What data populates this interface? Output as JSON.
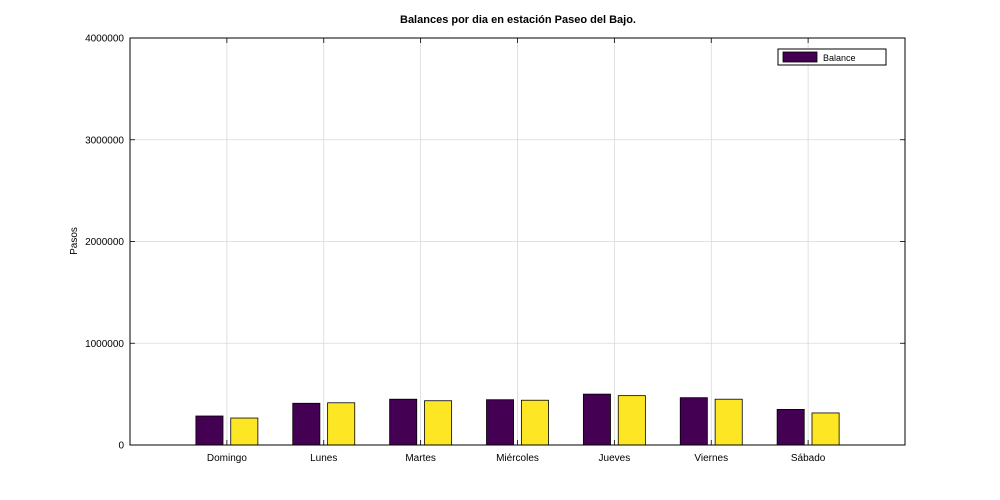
{
  "chart_data": {
    "type": "bar",
    "title": "Balances por dia en estación Paseo del Bajo.",
    "xlabel": "",
    "ylabel": "Pasos",
    "ylim": [
      0,
      4000000
    ],
    "yticks": [
      0,
      1000000,
      2000000,
      3000000,
      4000000
    ],
    "ytick_labels": [
      "0",
      "1000000",
      "2000000",
      "3000000",
      "4000000"
    ],
    "categories": [
      "Domingo",
      "Lunes",
      "Martes",
      "Miércoles",
      "Jueves",
      "Viernes",
      "Sábado"
    ],
    "series": [
      {
        "name": "Balance",
        "color": "#440154",
        "values": [
          285000,
          410000,
          450000,
          445000,
          500000,
          465000,
          350000
        ]
      },
      {
        "color": "#fde725",
        "values": [
          265000,
          415000,
          435000,
          440000,
          485000,
          450000,
          315000
        ]
      }
    ],
    "grid": true,
    "legend": {
      "position": "top-right",
      "entries": [
        "Balance"
      ]
    }
  }
}
